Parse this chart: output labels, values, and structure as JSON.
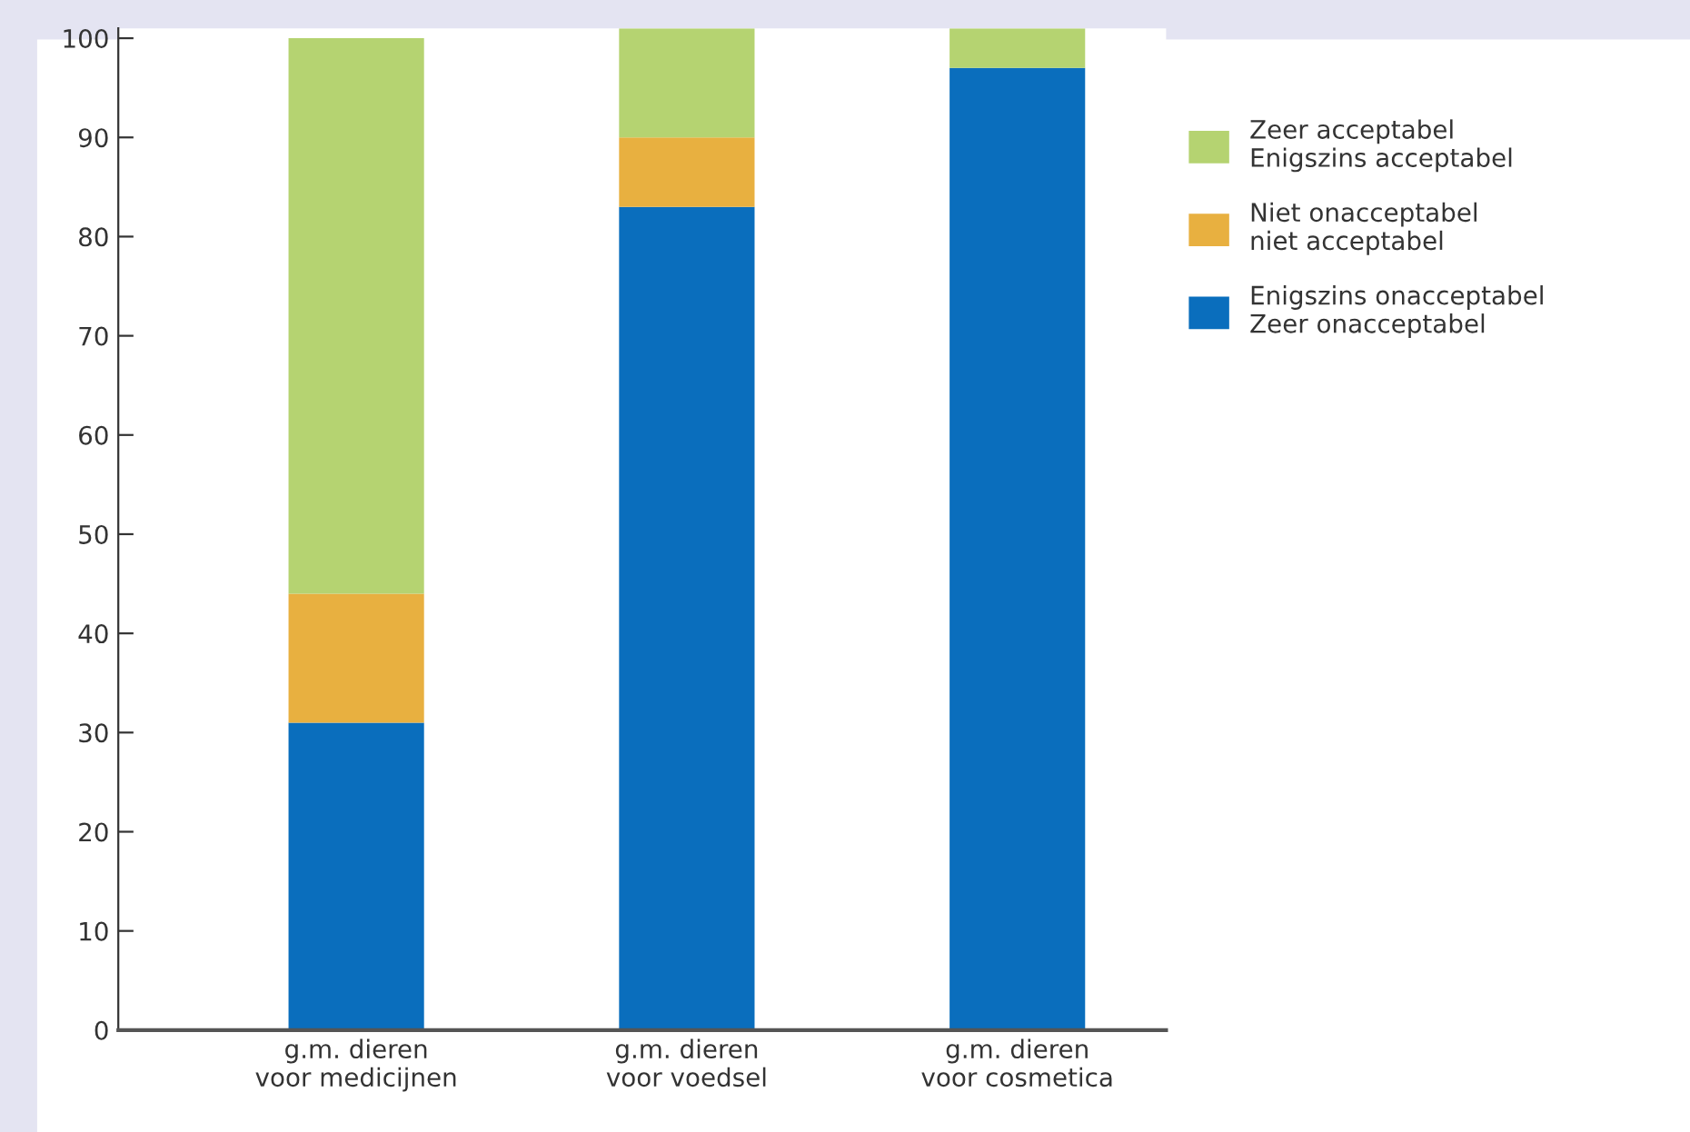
{
  "chart_data": {
    "type": "bar",
    "stacked": true,
    "categories": [
      "g.m. dieren\nvoor medicijnen",
      "g.m. dieren\nvoor voedsel",
      "g.m. dieren\nvoor cosmetica"
    ],
    "series": [
      {
        "name": "Enigszins onacceptabel\nZeer onacceptabel",
        "color": "#0a6ebd",
        "values": [
          31,
          83,
          97
        ]
      },
      {
        "name": "Niet onacceptabel\nniet acceptabel",
        "color": "#e8b040",
        "values": [
          13,
          7,
          0
        ]
      },
      {
        "name": "Zeer acceptabel\nEnigszins acceptabel",
        "color": "#b5d371",
        "values": [
          56,
          11,
          4
        ]
      }
    ],
    "ylim": [
      0,
      101
    ],
    "yticks": [
      0,
      10,
      20,
      30,
      40,
      50,
      60,
      70,
      80,
      90,
      100
    ],
    "grid": false,
    "legend": "right"
  }
}
